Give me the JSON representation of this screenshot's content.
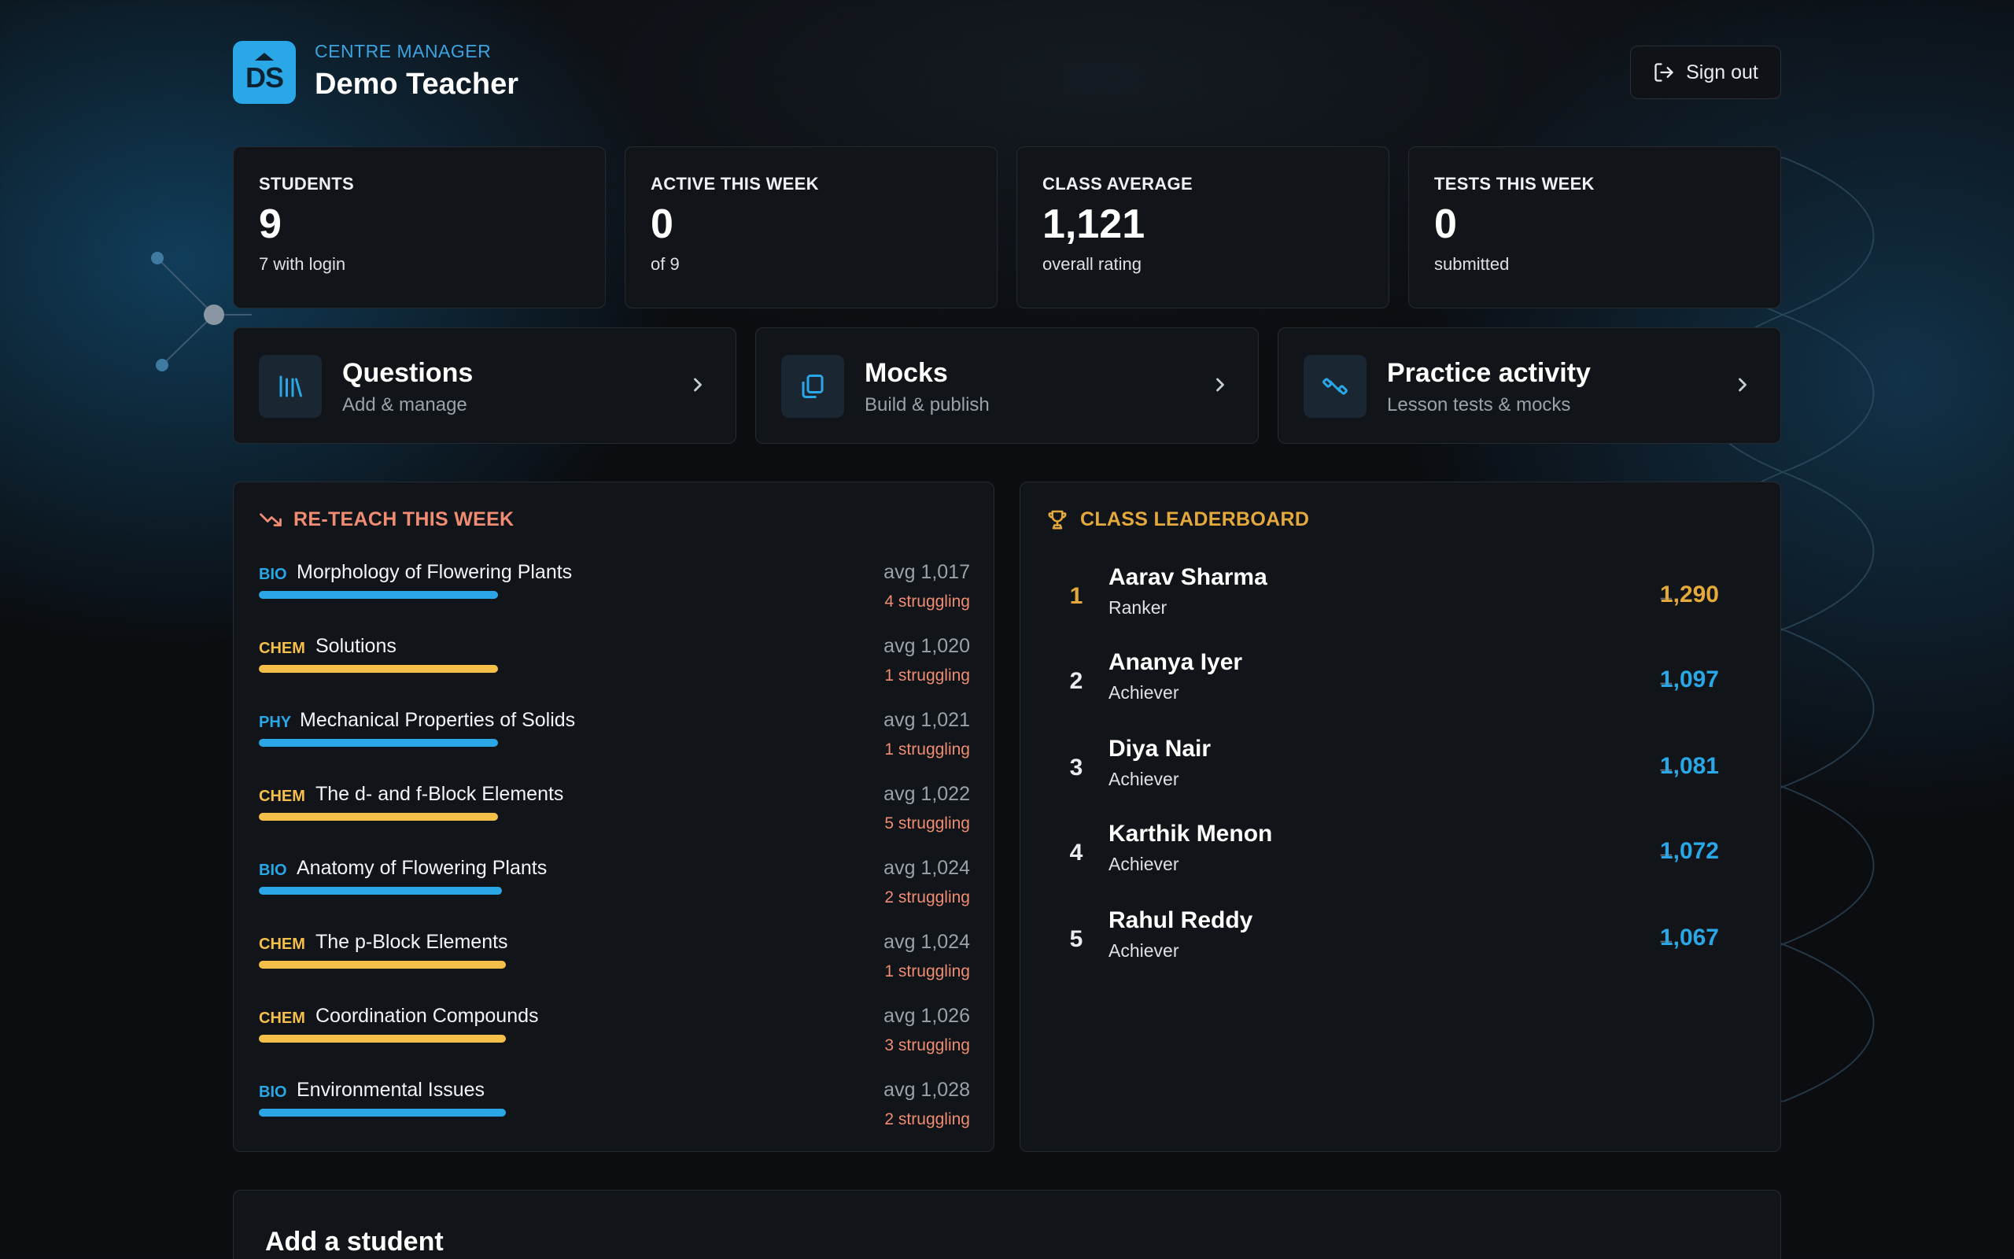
{
  "header": {
    "logo_text": "DS",
    "role": "CENTRE MANAGER",
    "name": "Demo Teacher",
    "signout_label": "Sign out"
  },
  "stats": [
    {
      "label": "STUDENTS",
      "value": "9",
      "sub": "7 with login"
    },
    {
      "label": "ACTIVE THIS WEEK",
      "value": "0",
      "sub": "of 9"
    },
    {
      "label": "CLASS AVERAGE",
      "value": "1,121",
      "sub": "overall rating"
    },
    {
      "label": "TESTS THIS WEEK",
      "value": "0",
      "sub": "submitted"
    }
  ],
  "actions": [
    {
      "title": "Questions",
      "sub": "Add & manage",
      "icon": "library-icon"
    },
    {
      "title": "Mocks",
      "sub": "Build & publish",
      "icon": "copy-icon"
    },
    {
      "title": "Practice activity",
      "sub": "Lesson tests & mocks",
      "icon": "dumbbell-icon"
    }
  ],
  "reteach": {
    "title": "RE-TEACH THIS WEEK",
    "topics": [
      {
        "subject": "BIO",
        "name": "Morphology of Flowering Plants",
        "avg": "avg 1,017",
        "struggling": "4 struggling",
        "level": 0.62
      },
      {
        "subject": "CHEM",
        "name": "Solutions",
        "avg": "avg 1,020",
        "struggling": "1 struggling",
        "level": 0.62
      },
      {
        "subject": "PHY",
        "name": "Mechanical Properties of Solids",
        "avg": "avg 1,021",
        "struggling": "1 struggling",
        "level": 0.62
      },
      {
        "subject": "CHEM",
        "name": "The d- and f-Block Elements",
        "avg": "avg 1,022",
        "struggling": "5 struggling",
        "level": 0.62
      },
      {
        "subject": "BIO",
        "name": "Anatomy of Flowering Plants",
        "avg": "avg 1,024",
        "struggling": "2 struggling",
        "level": 0.63
      },
      {
        "subject": "CHEM",
        "name": "The p-Block Elements",
        "avg": "avg 1,024",
        "struggling": "1 struggling",
        "level": 0.64
      },
      {
        "subject": "CHEM",
        "name": "Coordination Compounds",
        "avg": "avg 1,026",
        "struggling": "3 struggling",
        "level": 0.64
      },
      {
        "subject": "BIO",
        "name": "Environmental Issues",
        "avg": "avg 1,028",
        "struggling": "2 struggling",
        "level": 0.64
      }
    ]
  },
  "leaderboard": {
    "title": "CLASS LEADERBOARD",
    "rows": [
      {
        "rank": "1",
        "name": "Aarav Sharma",
        "title": "Ranker",
        "dash": "–",
        "score": "1,290"
      },
      {
        "rank": "2",
        "name": "Ananya Iyer",
        "title": "Achiever",
        "dash": "–",
        "score": "1,097"
      },
      {
        "rank": "3",
        "name": "Diya Nair",
        "title": "Achiever",
        "dash": "–",
        "score": "1,081"
      },
      {
        "rank": "4",
        "name": "Karthik Menon",
        "title": "Achiever",
        "dash": "–",
        "score": "1,072"
      },
      {
        "rank": "5",
        "name": "Rahul Reddy",
        "title": "Achiever",
        "dash": "–",
        "score": "1,067"
      }
    ]
  },
  "add_student": {
    "title": "Add a student"
  },
  "colors": {
    "accent_blue": "#2aa7e6",
    "bio": "#2aa7e6",
    "chem": "#f5c04a",
    "phy": "#2aa7e6",
    "warn": "#f08c72",
    "gold": "#e4a93a"
  }
}
